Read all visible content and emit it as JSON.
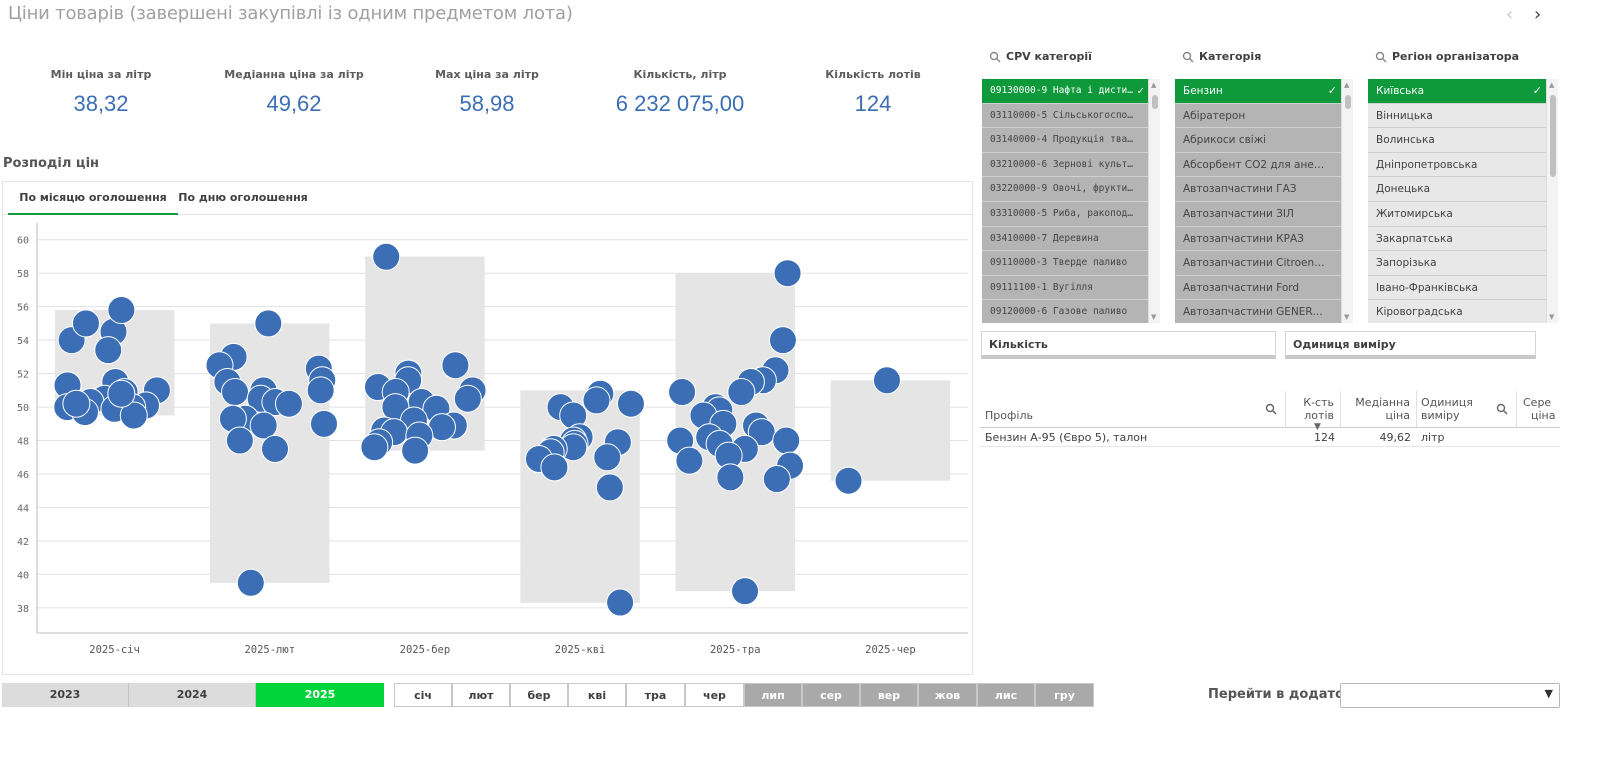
{
  "page": {
    "title": "Ціни товарів (завершені закупівлі із одним предметом лота)",
    "nav_prev": "‹",
    "nav_next": "›"
  },
  "kpis": [
    {
      "label": "Мін ціна за літр",
      "value": "38,32"
    },
    {
      "label": "Медіанна ціна за літр",
      "value": "49,62"
    },
    {
      "label": "Мах ціна за літр",
      "value": "58,98"
    },
    {
      "label": "Кількість, літр",
      "value": "6 232 075,00"
    },
    {
      "label": "Кількість лотів",
      "value": "124"
    }
  ],
  "section_title": "Розподіл цін",
  "chart_tabs": [
    "По місяцю оголошення",
    "По дню оголошення"
  ],
  "colors": {
    "accent_green": "#0e9a3b",
    "point_blue": "#3b6eb5",
    "box_gray": "#e5e5e5",
    "year_selected": "#00d33b"
  },
  "chart_data": {
    "type": "scatter",
    "title": "",
    "xlabel": "",
    "ylabel": "",
    "ylim": [
      36.5,
      61
    ],
    "yticks": [
      38,
      40,
      42,
      44,
      46,
      48,
      50,
      52,
      54,
      56,
      58,
      60
    ],
    "grid": true,
    "categories": [
      "2025-січ",
      "2025-лют",
      "2025-бер",
      "2025-кві",
      "2025-тра",
      "2025-чер"
    ],
    "boxes": [
      {
        "min": 49.5,
        "max": 55.8
      },
      {
        "min": 39.5,
        "max": 55.0
      },
      {
        "min": 47.4,
        "max": 59.0
      },
      {
        "min": 38.3,
        "max": 51.0
      },
      {
        "min": 39.0,
        "max": 58.0
      },
      {
        "min": 45.6,
        "max": 51.6
      }
    ],
    "points": [
      [
        54.5,
        55.8,
        54.0,
        55.0,
        53.4,
        51.5,
        51.3,
        51.0,
        50.9,
        50.5,
        50.3,
        50.1,
        50.0,
        50.0,
        49.9,
        49.7,
        49.5,
        50.2,
        50.8
      ],
      [
        55.0,
        53.0,
        52.5,
        52.3,
        51.6,
        51.5,
        51.0,
        51.0,
        50.9,
        50.5,
        50.3,
        50.2,
        49.3,
        49.3,
        49.0,
        48.9,
        48.0,
        47.5,
        39.5
      ],
      [
        58.98,
        52.5,
        52.0,
        51.6,
        51.2,
        51.0,
        50.9,
        50.5,
        50.3,
        50.0,
        49.9,
        49.2,
        48.9,
        48.8,
        48.6,
        48.5,
        48.3,
        47.9,
        47.6,
        47.4
      ],
      [
        50.8,
        50.4,
        50.2,
        50.0,
        49.5,
        48.2,
        48.0,
        47.9,
        47.8,
        47.6,
        47.5,
        47.3,
        47.0,
        46.9,
        46.4,
        45.2,
        38.32
      ],
      [
        58.0,
        54.0,
        52.2,
        51.6,
        51.5,
        50.9,
        50.9,
        50.0,
        49.8,
        49.5,
        49.0,
        48.9,
        48.5,
        48.2,
        48.0,
        48.0,
        47.8,
        47.5,
        47.1,
        46.8,
        46.5,
        45.8,
        45.7,
        39.0
      ],
      [
        51.6,
        45.6
      ]
    ]
  },
  "filters": [
    {
      "header": "CPV категорії",
      "items": [
        {
          "label": "09130000-9 Нафта і дистил...",
          "state": "selected"
        },
        {
          "label": "03110000-5 Сільськогоспод...",
          "state": "excluded"
        },
        {
          "label": "03140000-4 Продукція твар...",
          "state": "excluded"
        },
        {
          "label": "03210000-6 Зернові культур...",
          "state": "excluded"
        },
        {
          "label": "03220000-9 Овочі, фрукти т...",
          "state": "excluded"
        },
        {
          "label": "03310000-5 Риба, ракоподі...",
          "state": "excluded"
        },
        {
          "label": "03410000-7 Деревина",
          "state": "excluded"
        },
        {
          "label": "09110000-3 Тверде паливо",
          "state": "excluded"
        },
        {
          "label": "09111100-1 Вугілля",
          "state": "excluded"
        },
        {
          "label": "09120000-6 Газове паливо",
          "state": "excluded"
        }
      ]
    },
    {
      "header": "Категорія",
      "items": [
        {
          "label": "Бензин",
          "state": "selected"
        },
        {
          "label": "Абіратерон",
          "state": "excluded"
        },
        {
          "label": "Абрикоси свіжі",
          "state": "excluded"
        },
        {
          "label": "Абсорбент СО2 для анестезі...",
          "state": "excluded"
        },
        {
          "label": "Автозапчастини ГАЗ",
          "state": "excluded"
        },
        {
          "label": "Автозапчастини ЗІЛ",
          "state": "excluded"
        },
        {
          "label": "Автозапчастини КРАЗ",
          "state": "excluded"
        },
        {
          "label": "Автозапчастини Citroen/Peu...",
          "state": "excluded"
        },
        {
          "label": "Автозапчастини Ford",
          "state": "excluded"
        },
        {
          "label": "Автозапчастини GENERAL M...",
          "state": "excluded"
        }
      ]
    },
    {
      "header": "Регіон організатора",
      "items": [
        {
          "label": "Київська",
          "state": "selected"
        },
        {
          "label": "Вінницька",
          "state": "alternative"
        },
        {
          "label": "Волинська",
          "state": "alternative"
        },
        {
          "label": "Дніпропетровська",
          "state": "alternative"
        },
        {
          "label": "Донецька",
          "state": "alternative"
        },
        {
          "label": "Житомирська",
          "state": "alternative"
        },
        {
          "label": "Закарпатська",
          "state": "alternative"
        },
        {
          "label": "Запорізька",
          "state": "alternative"
        },
        {
          "label": "Івано-Франківська",
          "state": "alternative"
        },
        {
          "label": "Кіровоградська",
          "state": "alternative"
        }
      ]
    }
  ],
  "filter_buttons": [
    "Кількість",
    "Одиниця виміру"
  ],
  "table": {
    "headers": {
      "profile": "Профіль",
      "lots_1": "К-сть",
      "lots_2": "лотів",
      "median_1": "Медіанна",
      "median_2": "ціна",
      "unit_1": "Одиниця",
      "unit_2": "виміру",
      "avg_1": "Сере",
      "avg_2": "ціна"
    },
    "rows": [
      {
        "profile": "Бензин А-95 (Євро 5), талон",
        "lots": "124",
        "median": "49,62",
        "unit": "літр"
      }
    ]
  },
  "years": [
    {
      "label": "2023",
      "state": "normal"
    },
    {
      "label": "2024",
      "state": "normal"
    },
    {
      "label": "2025",
      "state": "selected"
    }
  ],
  "months": [
    {
      "label": "січ",
      "state": "normal"
    },
    {
      "label": "лют",
      "state": "normal"
    },
    {
      "label": "бер",
      "state": "normal"
    },
    {
      "label": "кві",
      "state": "normal"
    },
    {
      "label": "тра",
      "state": "normal"
    },
    {
      "label": "чер",
      "state": "normal"
    },
    {
      "label": "лип",
      "state": "excluded"
    },
    {
      "label": "сер",
      "state": "excluded"
    },
    {
      "label": "вер",
      "state": "excluded"
    },
    {
      "label": "жов",
      "state": "excluded"
    },
    {
      "label": "лис",
      "state": "excluded"
    },
    {
      "label": "гру",
      "state": "excluded"
    }
  ],
  "goto": {
    "label": "Перейти в додаток",
    "value": ""
  }
}
